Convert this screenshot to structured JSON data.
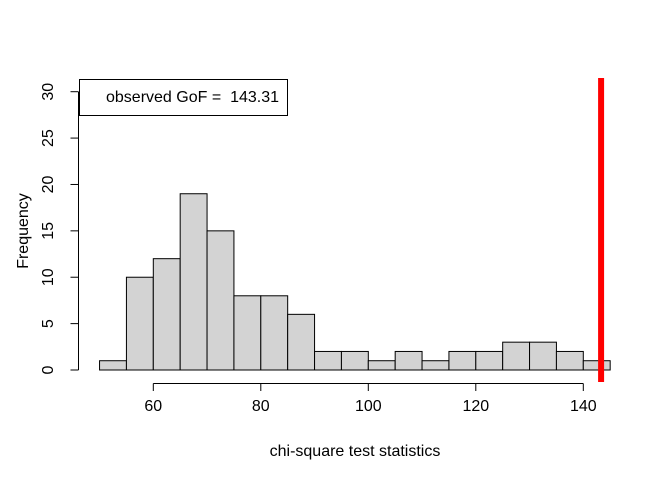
{
  "chart_data": {
    "type": "bar",
    "subtype": "histogram",
    "title": "",
    "xlabel": "chi-square test statistics",
    "ylabel": "Frequency",
    "bin_start": 50,
    "bin_width": 5,
    "bin_edges": [
      50,
      55,
      60,
      65,
      70,
      75,
      80,
      85,
      90,
      95,
      100,
      105,
      110,
      115,
      120,
      125,
      130,
      135,
      140,
      145
    ],
    "frequencies": [
      1,
      10,
      12,
      19,
      15,
      8,
      8,
      6,
      2,
      2,
      1,
      2,
      1,
      2,
      2,
      3,
      3,
      2,
      1
    ],
    "x_ticks": [
      60,
      80,
      100,
      120,
      140
    ],
    "y_ticks": [
      0,
      5,
      10,
      15,
      20,
      25,
      30
    ],
    "xlim": [
      50,
      145
    ],
    "ylim": [
      0,
      30
    ],
    "grid": false,
    "legend": {
      "position": "topleft",
      "label": "observed GoF =  143.31"
    },
    "observed_line": {
      "value": 143.31,
      "color": "#FF0000"
    },
    "colors": {
      "bar_fill": "#D3D3D3",
      "bar_border": "#000000",
      "axis": "#000000",
      "background": "#FFFFFF"
    }
  }
}
